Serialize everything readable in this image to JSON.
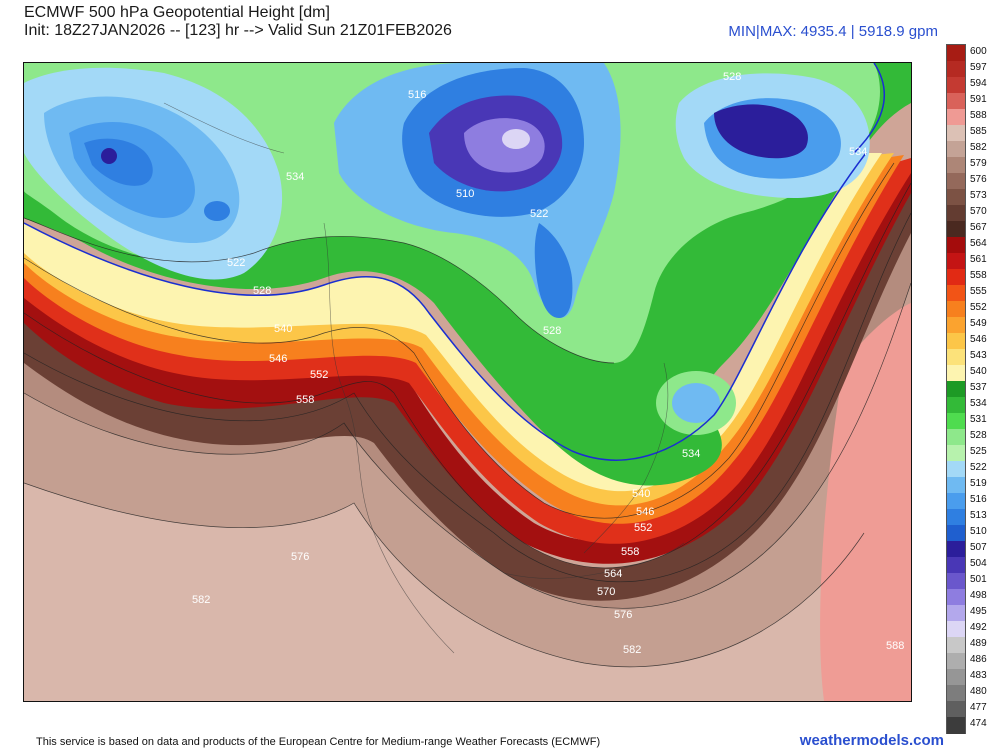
{
  "header": {
    "title": "ECMWF 500 hPa Geopotential Height [dm]",
    "subtitle": "Init: 18Z27JAN2026 -- [123] hr --> Valid Sun 21Z01FEB2026",
    "minmax": "MIN|MAX: 4935.4 | 5918.9 gpm"
  },
  "footer": {
    "notice": "This service is based on data and products of the European Centre for Medium-range Weather Forecasts (ECMWF)",
    "brand": "weathermodels.com"
  },
  "colorbar": {
    "levels": [
      {
        "label": "600",
        "color": "#a71c14"
      },
      {
        "label": "597",
        "color": "#b52a22"
      },
      {
        "label": "594",
        "color": "#c43a32"
      },
      {
        "label": "591",
        "color": "#d9625a"
      },
      {
        "label": "588",
        "color": "#ef9a94"
      },
      {
        "label": "585",
        "color": "#dcc1b5"
      },
      {
        "label": "582",
        "color": "#c4a396"
      },
      {
        "label": "579",
        "color": "#ad8677"
      },
      {
        "label": "576",
        "color": "#94695b"
      },
      {
        "label": "573",
        "color": "#7c5244"
      },
      {
        "label": "570",
        "color": "#633c31"
      },
      {
        "label": "567",
        "color": "#4a2920"
      },
      {
        "label": "564",
        "color": "#a40c0c"
      },
      {
        "label": "561",
        "color": "#c41414"
      },
      {
        "label": "558",
        "color": "#e12a14"
      },
      {
        "label": "555",
        "color": "#f25416"
      },
      {
        "label": "552",
        "color": "#f7801e"
      },
      {
        "label": "549",
        "color": "#fba32f"
      },
      {
        "label": "546",
        "color": "#fcc648"
      },
      {
        "label": "543",
        "color": "#fce27a"
      },
      {
        "label": "540",
        "color": "#fdf4b0"
      },
      {
        "label": "537",
        "color": "#1d9a25"
      },
      {
        "label": "534",
        "color": "#33ba38"
      },
      {
        "label": "531",
        "color": "#4fdc4f"
      },
      {
        "label": "528",
        "color": "#8ee88b"
      },
      {
        "label": "525",
        "color": "#b7f2ad"
      },
      {
        "label": "522",
        "color": "#a3d9f7"
      },
      {
        "label": "519",
        "color": "#6fbaf2"
      },
      {
        "label": "516",
        "color": "#4a9ded"
      },
      {
        "label": "513",
        "color": "#2f7fe1"
      },
      {
        "label": "510",
        "color": "#1f5fcf"
      },
      {
        "label": "507",
        "color": "#2b1e9b"
      },
      {
        "label": "504",
        "color": "#4937b6"
      },
      {
        "label": "501",
        "color": "#6a57cc"
      },
      {
        "label": "498",
        "color": "#8e7de0"
      },
      {
        "label": "495",
        "color": "#b3a8ec"
      },
      {
        "label": "492",
        "color": "#dcd6f5"
      },
      {
        "label": "489",
        "color": "#c8c8c8"
      },
      {
        "label": "486",
        "color": "#aeaeae"
      },
      {
        "label": "483",
        "color": "#969696"
      },
      {
        "label": "480",
        "color": "#7d7d7d"
      },
      {
        "label": "477",
        "color": "#5f5f5f"
      },
      {
        "label": "474",
        "color": "#3c3c3c"
      }
    ]
  },
  "map_labels": [
    "516",
    "510",
    "522",
    "528",
    "534",
    "534",
    "522",
    "528",
    "540",
    "546",
    "552",
    "558",
    "528",
    "534",
    "540",
    "546",
    "552",
    "558",
    "564",
    "570",
    "576",
    "582",
    "576",
    "582",
    "588"
  ]
}
